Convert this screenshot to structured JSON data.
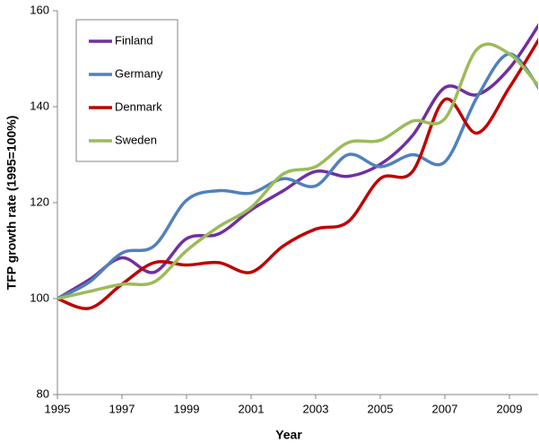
{
  "chart_data": {
    "type": "line",
    "x_label": "Year",
    "y_label": "TFP growth rate  (1995=100%)",
    "x": [
      1995,
      1996,
      1997,
      1998,
      1999,
      2000,
      2001,
      2002,
      2003,
      2004,
      2005,
      2006,
      2007,
      2008,
      2009,
      2010
    ],
    "series": [
      {
        "name": "Finland",
        "color": "#7030a0",
        "values": [
          100,
          104,
          108.5,
          105.5,
          112.5,
          113.5,
          118.5,
          122.5,
          126.5,
          125.5,
          128,
          134,
          144,
          142.5,
          148,
          158
        ]
      },
      {
        "name": "Germany",
        "color": "#4f81bd",
        "values": [
          100,
          103.5,
          109.5,
          111,
          120.5,
          122.5,
          122,
          125,
          123.5,
          130,
          127.5,
          130,
          128.5,
          142,
          151,
          143
        ]
      },
      {
        "name": "Denmark",
        "color": "#c00000",
        "values": [
          100,
          98,
          103,
          107.5,
          107,
          107.5,
          105.5,
          111,
          114.5,
          116,
          125,
          126.5,
          141.5,
          134.5,
          144,
          155
        ]
      },
      {
        "name": "Sweden",
        "color": "#9bbb59",
        "values": [
          100,
          101.5,
          103,
          103.5,
          110,
          115,
          119,
          126,
          127.5,
          132.5,
          133,
          137,
          137.5,
          152,
          151,
          143.5
        ]
      }
    ],
    "xlim": [
      1995,
      2010
    ],
    "xticks": [
      1995,
      1997,
      1999,
      2001,
      2003,
      2005,
      2007,
      2009
    ],
    "ylim": [
      80,
      160
    ],
    "yticks": [
      80,
      100,
      120,
      140,
      160
    ],
    "grid": false,
    "legend": "upper-left"
  }
}
